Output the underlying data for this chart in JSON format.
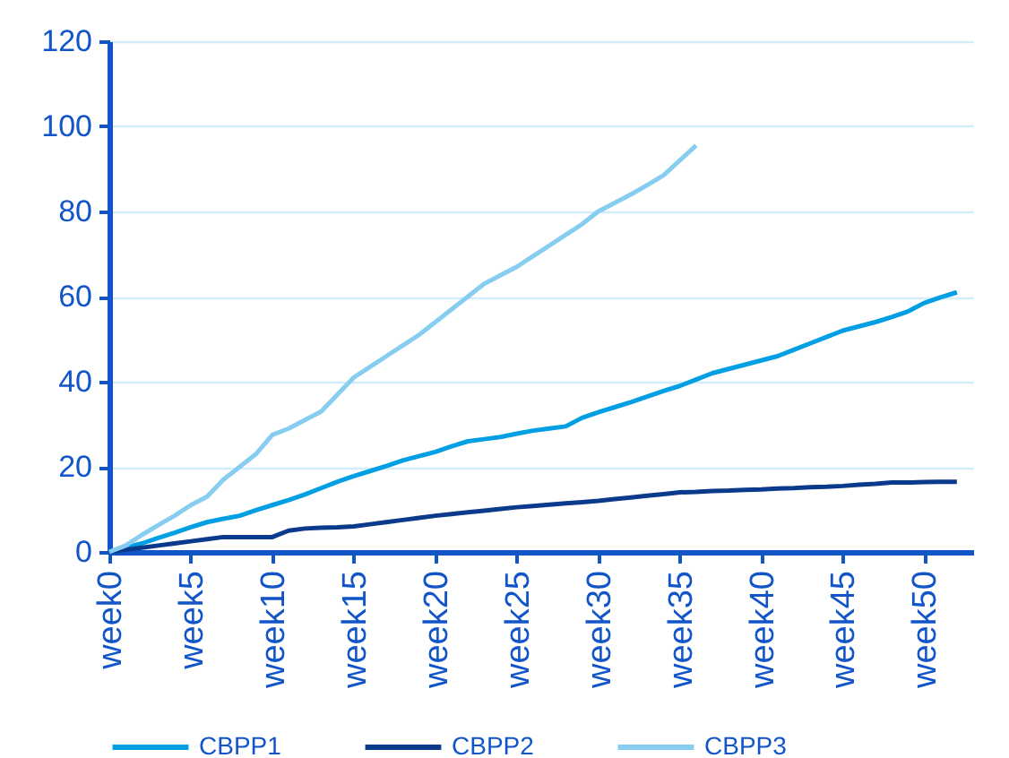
{
  "chart_data": {
    "type": "line",
    "categories": [
      "week0",
      null,
      null,
      null,
      null,
      "week5",
      null,
      null,
      null,
      null,
      "week10",
      null,
      null,
      null,
      null,
      "week15",
      null,
      null,
      null,
      null,
      "week20",
      null,
      null,
      null,
      null,
      "week25",
      null,
      null,
      null,
      null,
      "week30",
      null,
      null,
      null,
      null,
      "week35",
      null,
      null,
      null,
      null,
      "week40",
      null,
      null,
      null,
      null,
      "week45",
      null,
      null,
      null,
      null,
      "week50",
      null,
      null
    ],
    "ylim": [
      0,
      120
    ],
    "yticks": [
      0,
      20,
      40,
      60,
      80,
      100,
      120
    ],
    "grid": "y",
    "legend": "bottom",
    "marker": "none",
    "line_style": "solid",
    "series": [
      {
        "name": "CBPP1",
        "color": "#009fe3",
        "values": [
          0,
          1,
          2,
          3.3,
          4.5,
          5.8,
          7,
          7.8,
          8.5,
          9.8,
          11,
          12.2,
          13.5,
          15,
          16.5,
          17.8,
          19,
          20.2,
          21.5,
          22.5,
          23.5,
          24.8,
          26,
          26.5,
          27,
          27.8,
          28.5,
          29,
          29.5,
          31.5,
          32.8,
          34,
          35.2,
          36.5,
          37.8,
          39,
          40.5,
          42,
          43,
          44,
          45,
          46,
          47.5,
          49,
          50.5,
          52,
          53,
          54,
          55.2,
          56.5,
          58.5,
          59.8,
          61
        ]
      },
      {
        "name": "CBPP2",
        "color": "#0b3a8c",
        "values": [
          0,
          0.5,
          1,
          1.5,
          2,
          2.5,
          3,
          3.5,
          3.5,
          3.5,
          3.5,
          5,
          5.5,
          5.7,
          5.8,
          6,
          6.5,
          7,
          7.5,
          8,
          8.5,
          8.9,
          9.3,
          9.7,
          10.1,
          10.5,
          10.8,
          11.1,
          11.4,
          11.7,
          12,
          12.4,
          12.8,
          13.2,
          13.6,
          14,
          14.1,
          14.3,
          14.4,
          14.6,
          14.7,
          14.9,
          15,
          15.2,
          15.3,
          15.5,
          15.8,
          16,
          16.3,
          16.3,
          16.4,
          16.5,
          16.5
        ]
      },
      {
        "name": "CBPP3",
        "color": "#87cdf0",
        "values": [
          0,
          1.5,
          4,
          6.3,
          8.5,
          11,
          13,
          17,
          20,
          23,
          27.5,
          29,
          31,
          33,
          37,
          41,
          43.5,
          46,
          48.5,
          51,
          54,
          57,
          60,
          63,
          65,
          67,
          69.5,
          72,
          74.5,
          77,
          80,
          82,
          84,
          86.2,
          88.5,
          92,
          95.5,
          null,
          null,
          null,
          null,
          null,
          null,
          null,
          null,
          null,
          null,
          null,
          null,
          null,
          null,
          null,
          null
        ]
      }
    ]
  }
}
